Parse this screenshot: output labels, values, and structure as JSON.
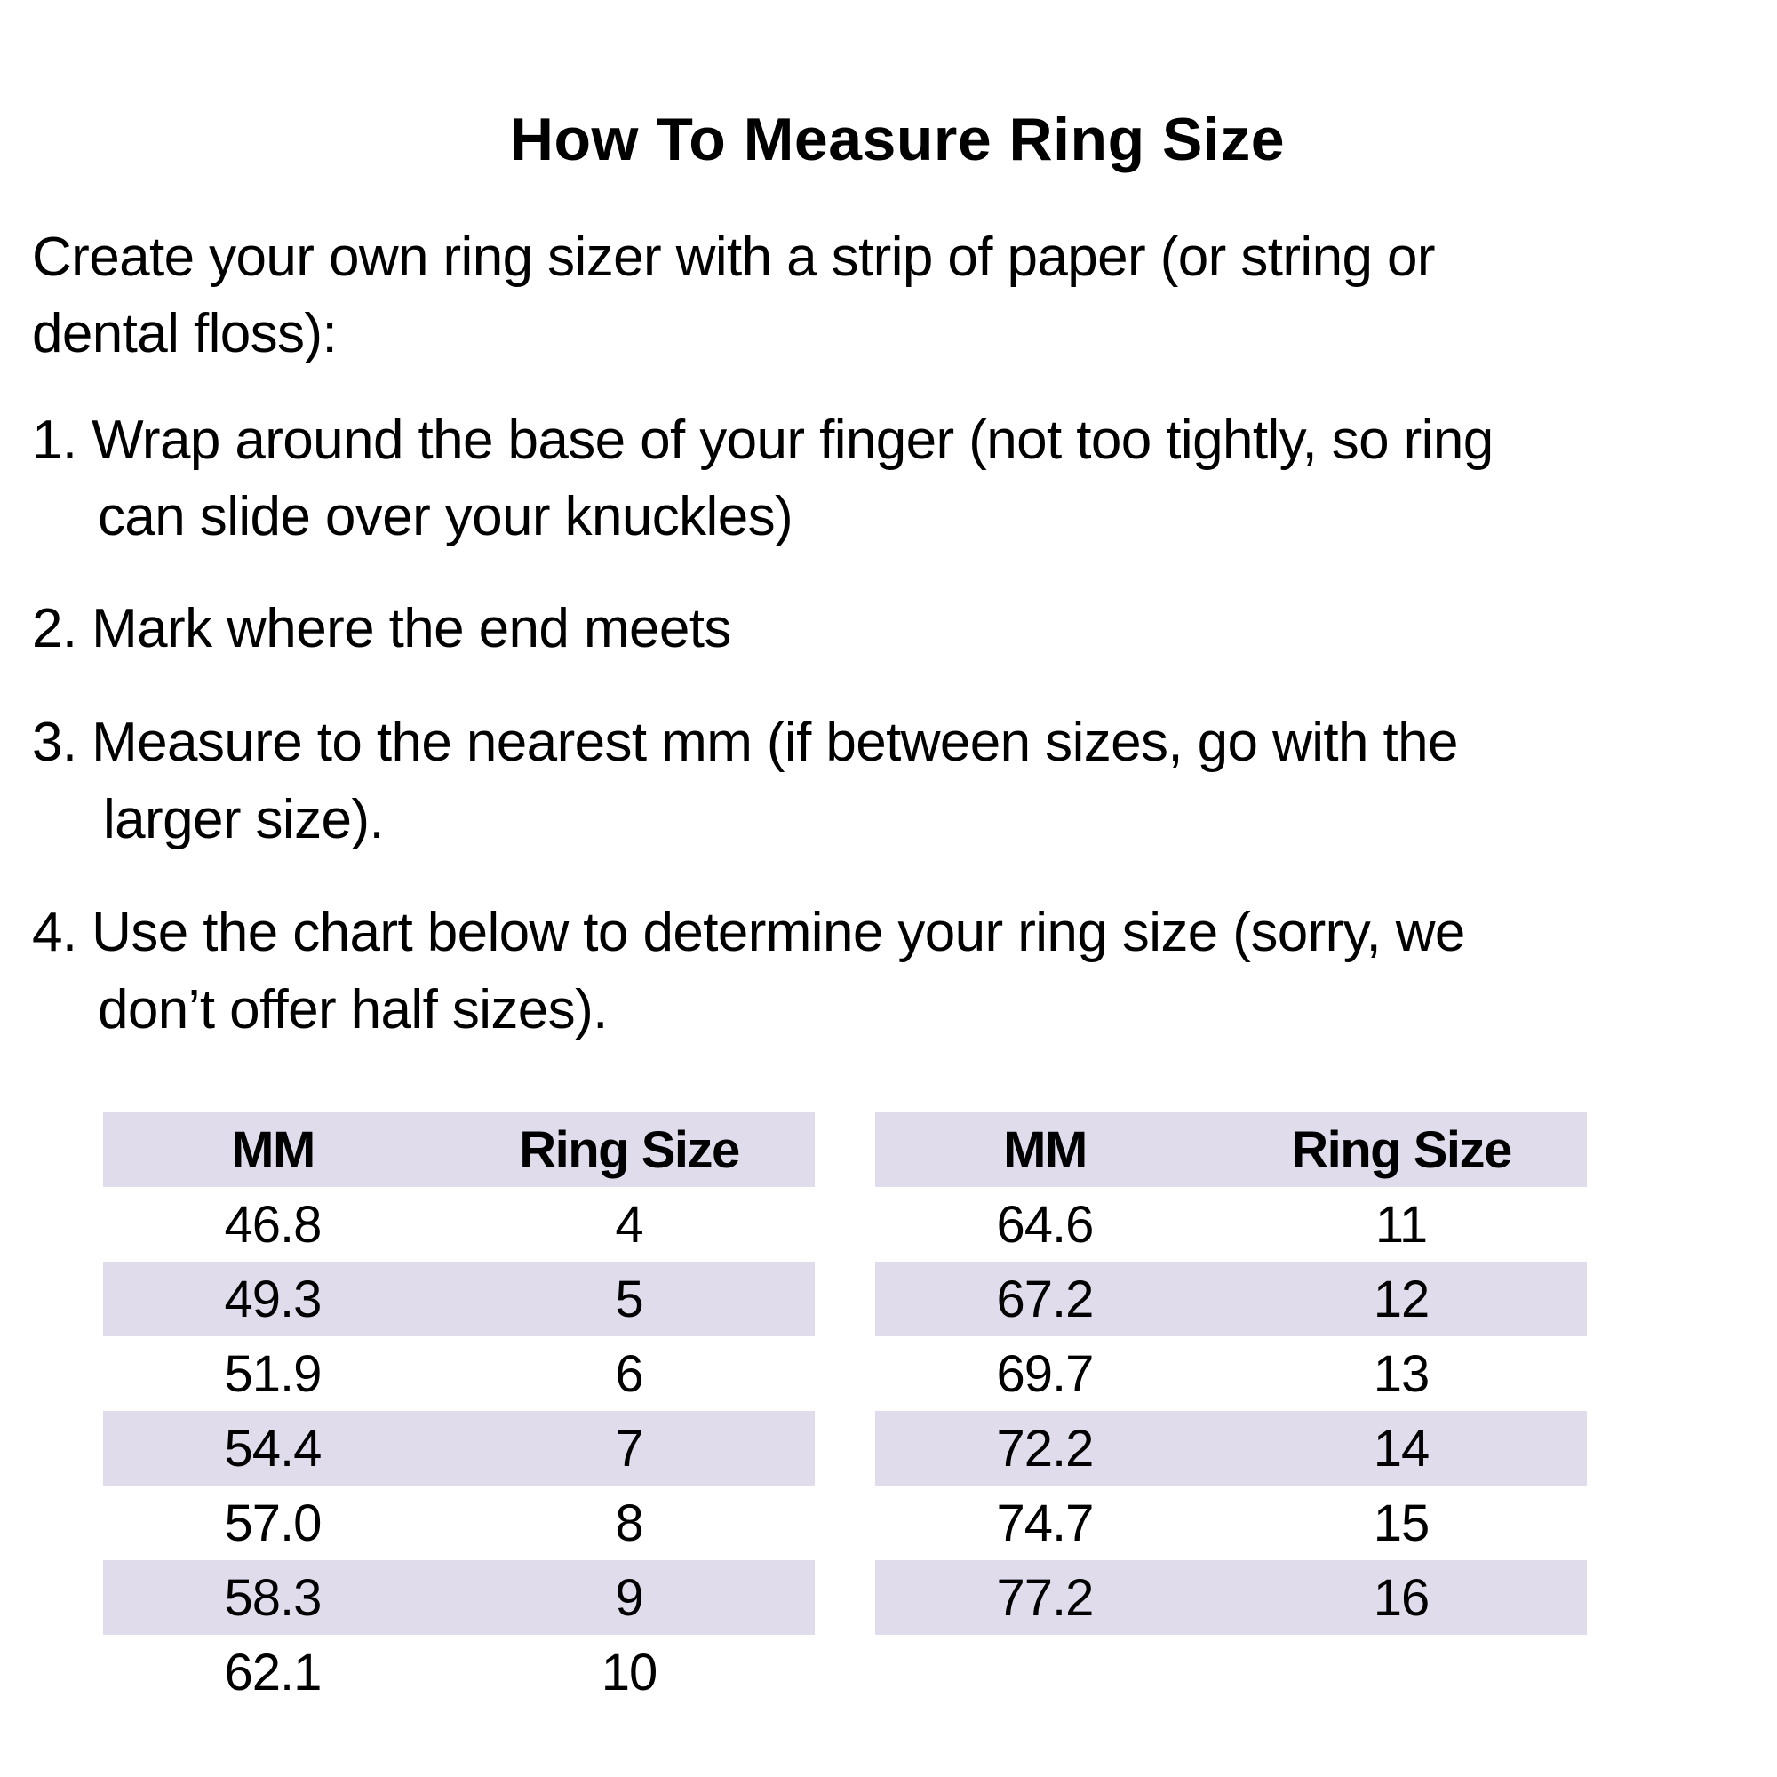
{
  "title": "How To Measure Ring Size",
  "intro": [
    "Create your own ring sizer with a strip of paper (or string or",
    "dental floss):"
  ],
  "steps": [
    [
      "1. Wrap around the base of your finger (not too tightly, so ring",
      "can slide over your knuckles)"
    ],
    [
      "2. Mark where the end meets"
    ],
    [
      "3. Measure to the nearest mm (if between sizes, go with the",
      "larger size)."
    ],
    [
      "4. Use the chart below to determine your ring size (sorry, we",
      "don’t offer half sizes)."
    ]
  ],
  "table_headers": [
    "MM",
    "Ring Size"
  ],
  "table_left": [
    [
      "46.8",
      "4"
    ],
    [
      "49.3",
      "5"
    ],
    [
      "51.9",
      "6"
    ],
    [
      "54.4",
      "7"
    ],
    [
      "57.0",
      "8"
    ],
    [
      "58.3",
      "9"
    ],
    [
      "62.1",
      "10"
    ]
  ],
  "table_right": [
    [
      "64.6",
      "11"
    ],
    [
      "67.2",
      "12"
    ],
    [
      "69.7",
      "13"
    ],
    [
      "72.2",
      "14"
    ],
    [
      "74.7",
      "15"
    ],
    [
      "77.2",
      "16"
    ]
  ],
  "colors": {
    "row_shade": "#e1dcec",
    "text": "#000000"
  }
}
